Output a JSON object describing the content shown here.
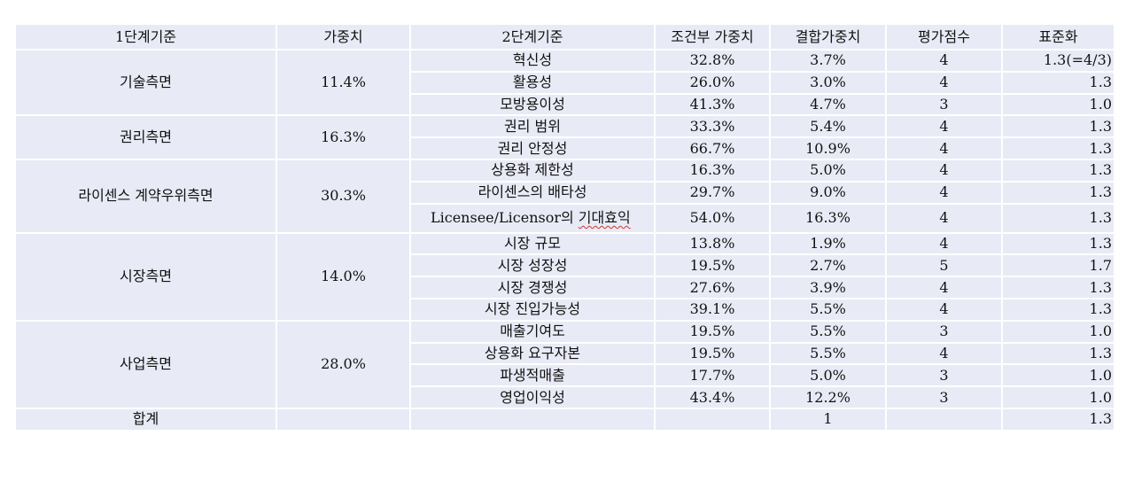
{
  "header": {
    "level1": "1단계기준",
    "weight": "가중치",
    "level2": "2단계기준",
    "cond_weight": "조건부 가중치",
    "comb_weight": "결합가중치",
    "score": "평가점수",
    "standard": "표준화"
  },
  "groups": [
    {
      "name": "기술측면",
      "weight": "11.4%",
      "rows": [
        {
          "criterion": "혁신성",
          "cond": "32.8%",
          "comb": "3.7%",
          "score": "4",
          "std": "1.3(=4/3)"
        },
        {
          "criterion": "활용성",
          "cond": "26.0%",
          "comb": "3.0%",
          "score": "4",
          "std": "1.3"
        },
        {
          "criterion": "모방용이성",
          "cond": "41.3%",
          "comb": "4.7%",
          "score": "3",
          "std": "1.0"
        }
      ]
    },
    {
      "name": "권리측면",
      "weight": "16.3%",
      "rows": [
        {
          "criterion": "권리 범위",
          "cond": "33.3%",
          "comb": "5.4%",
          "score": "4",
          "std": "1.3"
        },
        {
          "criterion": "권리 안정성",
          "cond": "66.7%",
          "comb": "10.9%",
          "score": "4",
          "std": "1.3"
        }
      ]
    },
    {
      "name": "라이센스 계약우위측면",
      "weight": "30.3%",
      "rows": [
        {
          "criterion": "상용화 제한성",
          "cond": "16.3%",
          "comb": "5.0%",
          "score": "4",
          "std": "1.3"
        },
        {
          "criterion": "라이센스의 배타성",
          "cond": "29.7%",
          "comb": "9.0%",
          "score": "4",
          "std": "1.3"
        },
        {
          "criterion_prefix": "Licensee/Licensor의 ",
          "criterion_flagged": "기대효익",
          "cond": "54.0%",
          "comb": "16.3%",
          "score": "4",
          "std": "1.3"
        }
      ]
    },
    {
      "name": "시장측면",
      "weight": "14.0%",
      "rows": [
        {
          "criterion": "시장 규모",
          "cond": "13.8%",
          "comb": "1.9%",
          "score": "4",
          "std": "1.3"
        },
        {
          "criterion": "시장 성장성",
          "cond": "19.5%",
          "comb": "2.7%",
          "score": "5",
          "std": "1.7"
        },
        {
          "criterion": "시장 경쟁성",
          "cond": "27.6%",
          "comb": "3.9%",
          "score": "4",
          "std": "1.3"
        },
        {
          "criterion": "시장 진입가능성",
          "cond": "39.1%",
          "comb": "5.5%",
          "score": "4",
          "std": "1.3"
        }
      ]
    },
    {
      "name": "사업측면",
      "weight": "28.0%",
      "rows": [
        {
          "criterion": "매출기여도",
          "cond": "19.5%",
          "comb": "5.5%",
          "score": "3",
          "std": "1.0"
        },
        {
          "criterion": "상용화 요구자본",
          "cond": "19.5%",
          "comb": "5.5%",
          "score": "4",
          "std": "1.3"
        },
        {
          "criterion": "파생적매출",
          "cond": "17.7%",
          "comb": "5.0%",
          "score": "3",
          "std": "1.0"
        },
        {
          "criterion": "영업이익성",
          "cond": "43.4%",
          "comb": "12.2%",
          "score": "3",
          "std": "1.0"
        }
      ]
    }
  ],
  "total": {
    "label": "합계",
    "comb": "1",
    "std": "1.3"
  }
}
